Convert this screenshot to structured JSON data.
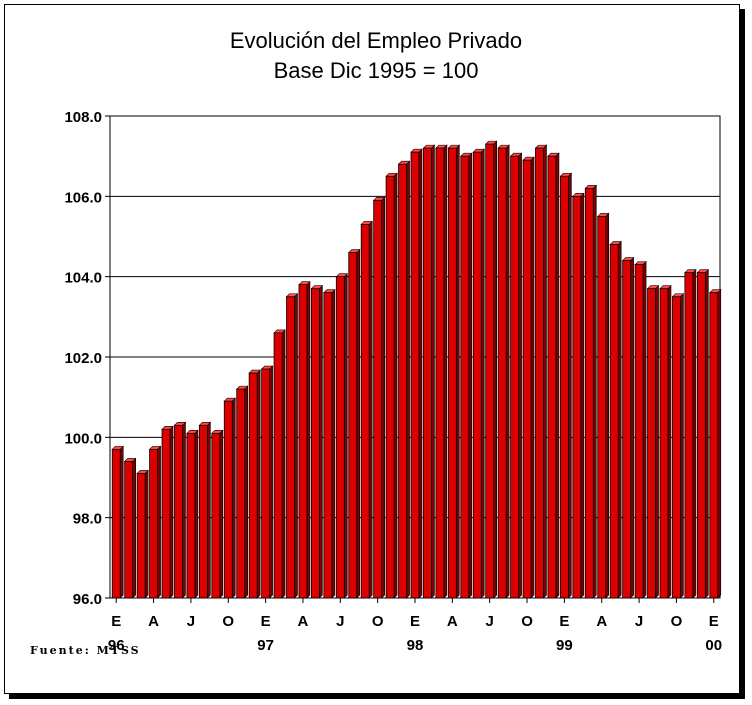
{
  "chart_data": {
    "type": "bar",
    "title": "Evolución del Empleo Privado",
    "subtitle": "Base Dic 1995 = 100",
    "ylim": [
      96,
      108
    ],
    "yticks": [
      "96.0",
      "98.0",
      "100.0",
      "102.0",
      "104.0",
      "106.0",
      "108.0"
    ],
    "grid": true,
    "bar_color": "#dd0000",
    "month_labels": [
      "E",
      "A",
      "J",
      "O",
      "E",
      "A",
      "J",
      "O",
      "E",
      "A",
      "J",
      "O",
      "E",
      "A",
      "J",
      "O",
      "E"
    ],
    "year_labels": [
      {
        "text": "96",
        "index": 0
      },
      {
        "text": "97",
        "index": 12
      },
      {
        "text": "98",
        "index": 24
      },
      {
        "text": "99",
        "index": 36
      },
      {
        "text": "00",
        "index": 48
      }
    ],
    "values": [
      99.7,
      99.4,
      99.1,
      99.7,
      100.2,
      100.3,
      100.1,
      100.3,
      100.1,
      100.9,
      101.2,
      101.6,
      101.7,
      102.6,
      103.5,
      103.8,
      103.7,
      103.6,
      104.0,
      104.6,
      105.3,
      105.9,
      106.5,
      106.8,
      107.1,
      107.2,
      107.2,
      107.2,
      107.0,
      107.1,
      107.3,
      107.2,
      107.0,
      106.9,
      107.2,
      107.0,
      106.5,
      106.0,
      106.2,
      105.5,
      104.8,
      104.4,
      104.3,
      103.7,
      103.7,
      103.5,
      104.1,
      104.1,
      103.6
    ]
  },
  "source": "Fuente:   MTSS"
}
